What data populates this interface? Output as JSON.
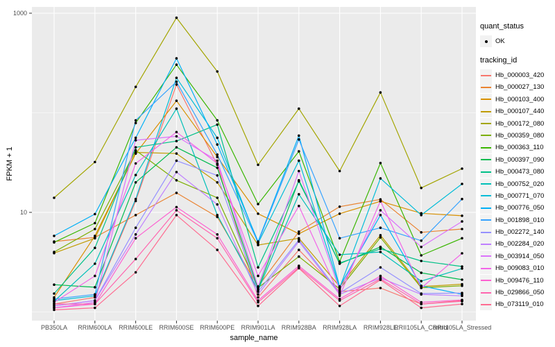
{
  "chart_data": {
    "type": "line",
    "title": "",
    "xlabel": "sample_name",
    "ylabel": "FPKM + 1",
    "y_scale": "log10",
    "ylim": [
      0.82,
      1200
    ],
    "y_axis_ticks": [
      {
        "value": 1000,
        "label": "1000"
      },
      {
        "value": 10,
        "label": "10"
      }
    ],
    "y_gridlines_major": [
      10,
      1000
    ],
    "y_gridlines_minor": [
      1,
      100
    ],
    "grid": true,
    "legend_position": "right",
    "panel_background": "#EBEBEB",
    "gridline_color": "#FFFFFF",
    "point_color": "#000000",
    "axis_text_color": "#4D4D4D",
    "categories": [
      "PB350LA",
      "RRIM600LA",
      "RRIM600LE",
      "RRIM600SE",
      "RRIM600PE",
      "RRIM901LA",
      "RRIM928BA",
      "RRIM928LA",
      "RRIM928LE",
      "RRII105LA_Control",
      "RRII105LA_Stressed"
    ],
    "quant_legend": {
      "title": "quant_status",
      "items": [
        {
          "label": "OK",
          "marker": "point"
        }
      ]
    },
    "series_legend_title": "tracking_id",
    "series": [
      {
        "name": "Hb_000003_420",
        "color": "#F8766D",
        "values": [
          1.2,
          1.4,
          13,
          192,
          30,
          1.4,
          4.2,
          1.6,
          1.74,
          1.2,
          1.3
        ]
      },
      {
        "name": "Hb_000027_130",
        "color": "#EA8331",
        "values": [
          5.1,
          5.6,
          9.4,
          15.7,
          9,
          1.8,
          6.4,
          11.4,
          13.5,
          6.3,
          6.8
        ]
      },
      {
        "name": "Hb_000103_400",
        "color": "#D89000",
        "values": [
          1.4,
          5.8,
          39,
          132,
          36,
          9.7,
          6.1,
          9.7,
          12.9,
          9.8,
          9.25
        ]
      },
      {
        "name": "Hb_000107_440",
        "color": "#C09B00",
        "values": [
          3.9,
          5.5,
          40,
          39,
          20,
          4.7,
          5.5,
          1.8,
          5.9,
          1.8,
          1.9
        ]
      },
      {
        "name": "Hb_000172_080",
        "color": "#A3A500",
        "values": [
          14,
          32,
          182,
          900,
          260,
          30,
          110,
          26,
          160,
          17.6,
          27.5
        ]
      },
      {
        "name": "Hb_000359_080",
        "color": "#7CAE00",
        "values": [
          4.0,
          6.8,
          42,
          21,
          14,
          1.75,
          3.6,
          1.7,
          5.6,
          1.75,
          1.83
        ]
      },
      {
        "name": "Hb_000363_110",
        "color": "#39B600",
        "values": [
          5.0,
          7.8,
          79,
          304,
          84,
          12.1,
          41,
          3.2,
          31.3,
          3.7,
          5.5
        ]
      },
      {
        "name": "Hb_000397_090",
        "color": "#00BB4E",
        "values": [
          1.88,
          1.77,
          20,
          45,
          28,
          1.7,
          21,
          3.05,
          4.5,
          2.47,
          2.11
        ]
      },
      {
        "name": "Hb_000473_080",
        "color": "#00C087",
        "values": [
          1.53,
          4.4,
          45,
          52,
          76,
          2.8,
          20.5,
          3.1,
          4.3,
          3.25,
          2.86
        ]
      },
      {
        "name": "Hb_000752_020",
        "color": "#00C0B8",
        "values": [
          1.28,
          3.05,
          23.7,
          110,
          9.4,
          1.65,
          15.2,
          3.76,
          4.0,
          2.04,
          2.73
        ]
      },
      {
        "name": "Hb_000771_070",
        "color": "#00BCD8",
        "values": [
          1.3,
          1.45,
          13.6,
          224,
          56,
          4.9,
          33,
          1.75,
          21.9,
          9.4,
          19.3
        ]
      },
      {
        "name": "Hb_000776_050",
        "color": "#00B0F6",
        "values": [
          5.8,
          9.6,
          56,
          352,
          48,
          5.1,
          59,
          1.8,
          9.4,
          1.83,
          1.5
        ]
      },
      {
        "name": "Hb_001898_010",
        "color": "#35A2FF",
        "values": [
          1.35,
          1.5,
          84,
          205,
          38,
          5.0,
          54,
          5.5,
          7.0,
          5.2,
          13.6
        ]
      },
      {
        "name": "Hb_002272_140",
        "color": "#9590FF",
        "values": [
          1.15,
          1.3,
          7,
          33,
          23.5,
          1.6,
          5.3,
          1.55,
          2.8,
          1.53,
          1.55
        ]
      },
      {
        "name": "Hb_002284_020",
        "color": "#BF80FF",
        "values": [
          1.15,
          1.3,
          6,
          25.4,
          12,
          1.5,
          5.1,
          1.5,
          2.2,
          1.5,
          1.45
        ]
      },
      {
        "name": "Hb_003914_050",
        "color": "#DB72FB",
        "values": [
          1.1,
          1.25,
          53,
          58,
          33,
          1.8,
          26,
          1.65,
          10.5,
          4.5,
          8.1
        ]
      },
      {
        "name": "Hb_009083_010",
        "color": "#F265E8",
        "values": [
          1.25,
          2.3,
          31,
          64,
          31,
          2.3,
          11.6,
          1.45,
          13.0,
          1.74,
          3.88
        ]
      },
      {
        "name": "Hb_009476_110",
        "color": "#FD61D1",
        "values": [
          1.1,
          1.2,
          5.5,
          11.3,
          6,
          1.3,
          2.9,
          1.35,
          2.3,
          1.25,
          1.32
        ]
      },
      {
        "name": "Hb_029866_050",
        "color": "#FF65AE",
        "values": [
          1.2,
          1.2,
          3.4,
          10.5,
          5.5,
          1.25,
          2.8,
          1.3,
          2.15,
          1.2,
          1.28
        ]
      },
      {
        "name": "Hb_073119_010",
        "color": "#FF6C91",
        "values": [
          1.05,
          1.1,
          2.5,
          9.4,
          4.2,
          1.15,
          2.75,
          1.15,
          2.1,
          1.1,
          1.2
        ]
      }
    ]
  }
}
